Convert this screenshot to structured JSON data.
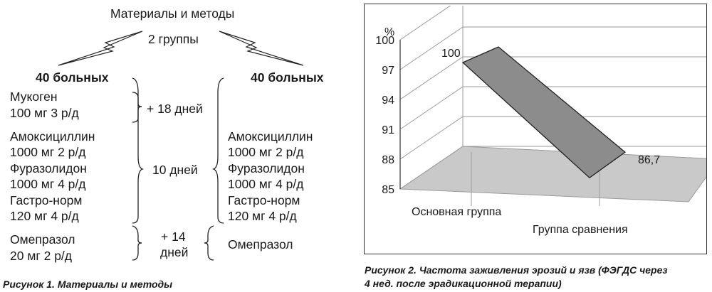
{
  "figure1": {
    "title": "Материалы и методы",
    "subtitle": "2 группы",
    "left_group": {
      "header": "40 больных",
      "drugs": [
        {
          "name": "Мукоген",
          "dose": "100 мг 3 р/д"
        },
        {
          "name": "Амоксициллин",
          "dose": "1000 мг 2 р/д"
        },
        {
          "name": "Фуразолидон",
          "dose": "1000 мг 4 р/д"
        },
        {
          "name": "Гастро-норм",
          "dose": "120 мг 4 р/д"
        },
        {
          "name": "Омепразол",
          "dose": "20 мг 2 р/д"
        }
      ]
    },
    "right_group": {
      "header": "40 больных",
      "drugs": [
        {
          "name": "Амоксициллин",
          "dose": "1000 мг 2 р/д"
        },
        {
          "name": "Фуразолидон",
          "dose": "1000 мг 4 р/д"
        },
        {
          "name": "Гастро-норм",
          "dose": "120 мг 4 р/д"
        },
        {
          "name": "Омепразол"
        }
      ]
    },
    "durations": {
      "first": "+ 18 дней",
      "second": "10 дней",
      "third_line1": "+ 14",
      "third_line2": "дней"
    },
    "caption": "Рисунок 1. Материалы и методы"
  },
  "figure2": {
    "caption_line1": "Рисунок 2. Частота заживления эрозий и язв (ФЭГДС через",
    "caption_line2": "4 нед. после эрадикационной терапии)"
  },
  "chart_data": {
    "type": "area",
    "title": "",
    "xlabel": "",
    "ylabel": "%",
    "categories": [
      "Основная группа",
      "Группа сравнения"
    ],
    "values": [
      100,
      86.7
    ],
    "data_labels": [
      "100",
      "86,7"
    ],
    "ylim": [
      85,
      100
    ],
    "yticks": [
      85,
      88,
      91,
      94,
      97,
      100
    ],
    "ytick_labels": [
      "85",
      "88",
      "91",
      "94",
      "97",
      "100"
    ],
    "grid": true,
    "projection": "3d",
    "colors": {
      "fill": "#8c8c8c",
      "floor": "#c9c9c9",
      "grid": "#9a9a9a"
    }
  }
}
